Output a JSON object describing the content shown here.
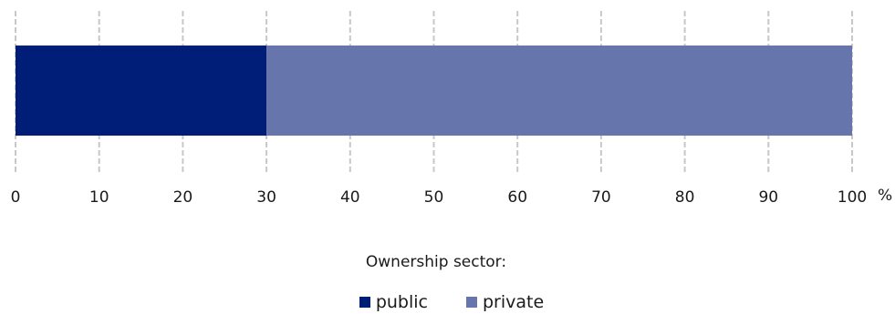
{
  "chart_data": {
    "type": "bar",
    "orientation": "horizontal",
    "stacked": true,
    "categories": [
      ""
    ],
    "series": [
      {
        "name": "public",
        "values": [
          30
        ],
        "color": "#001e78"
      },
      {
        "name": "private",
        "values": [
          70
        ],
        "color": "#6676ad"
      }
    ],
    "xlim": [
      0,
      100
    ],
    "xticks": [
      0,
      10,
      20,
      30,
      40,
      50,
      60,
      70,
      80,
      90,
      100
    ],
    "x_unit": "%",
    "grid": true,
    "grid_color": "#c8c8c8",
    "legend": {
      "title": "Ownership sector:",
      "position": "bottom"
    }
  }
}
